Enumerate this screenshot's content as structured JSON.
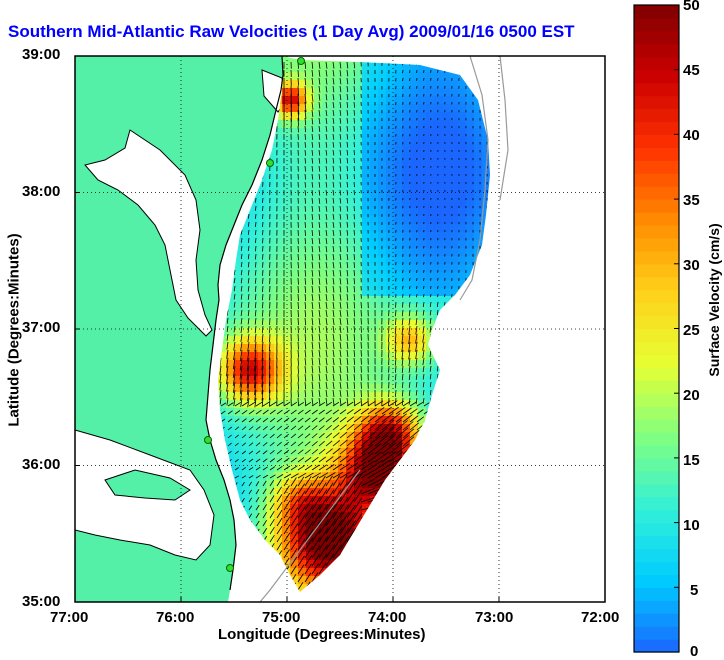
{
  "title": "Southern Mid-Atlantic Raw Velocities (1 Day Avg) 2009/01/16 0500 EST",
  "map": {
    "xlabel": "Longitude (Degrees:Minutes)",
    "ylabel": "Latitude (Degrees:Minutes)",
    "x_ticks": [
      "77:00",
      "76:00",
      "75:00",
      "74:00",
      "73:00",
      "72:00"
    ],
    "y_ticks": [
      "39:00",
      "38:00",
      "37:00",
      "36:00",
      "35:00"
    ],
    "lon_range": [
      -77,
      -72
    ],
    "lat_range": [
      35,
      39
    ],
    "grid": "dotted",
    "land_color": "#55f0a8",
    "water_color": "#ffffff"
  },
  "colorbar": {
    "label": "Surface Velocity (cm/s)",
    "ticks": [
      "0",
      "5",
      "10",
      "15",
      "20",
      "25",
      "30",
      "35",
      "40",
      "45",
      "50"
    ],
    "range": [
      0,
      50
    ],
    "colors": [
      "#1a66ff",
      "#00ccff",
      "#33f0d8",
      "#80ff80",
      "#e6ff33",
      "#ffd21a",
      "#ff8c00",
      "#ff3300",
      "#cc0000",
      "#800000"
    ]
  }
}
